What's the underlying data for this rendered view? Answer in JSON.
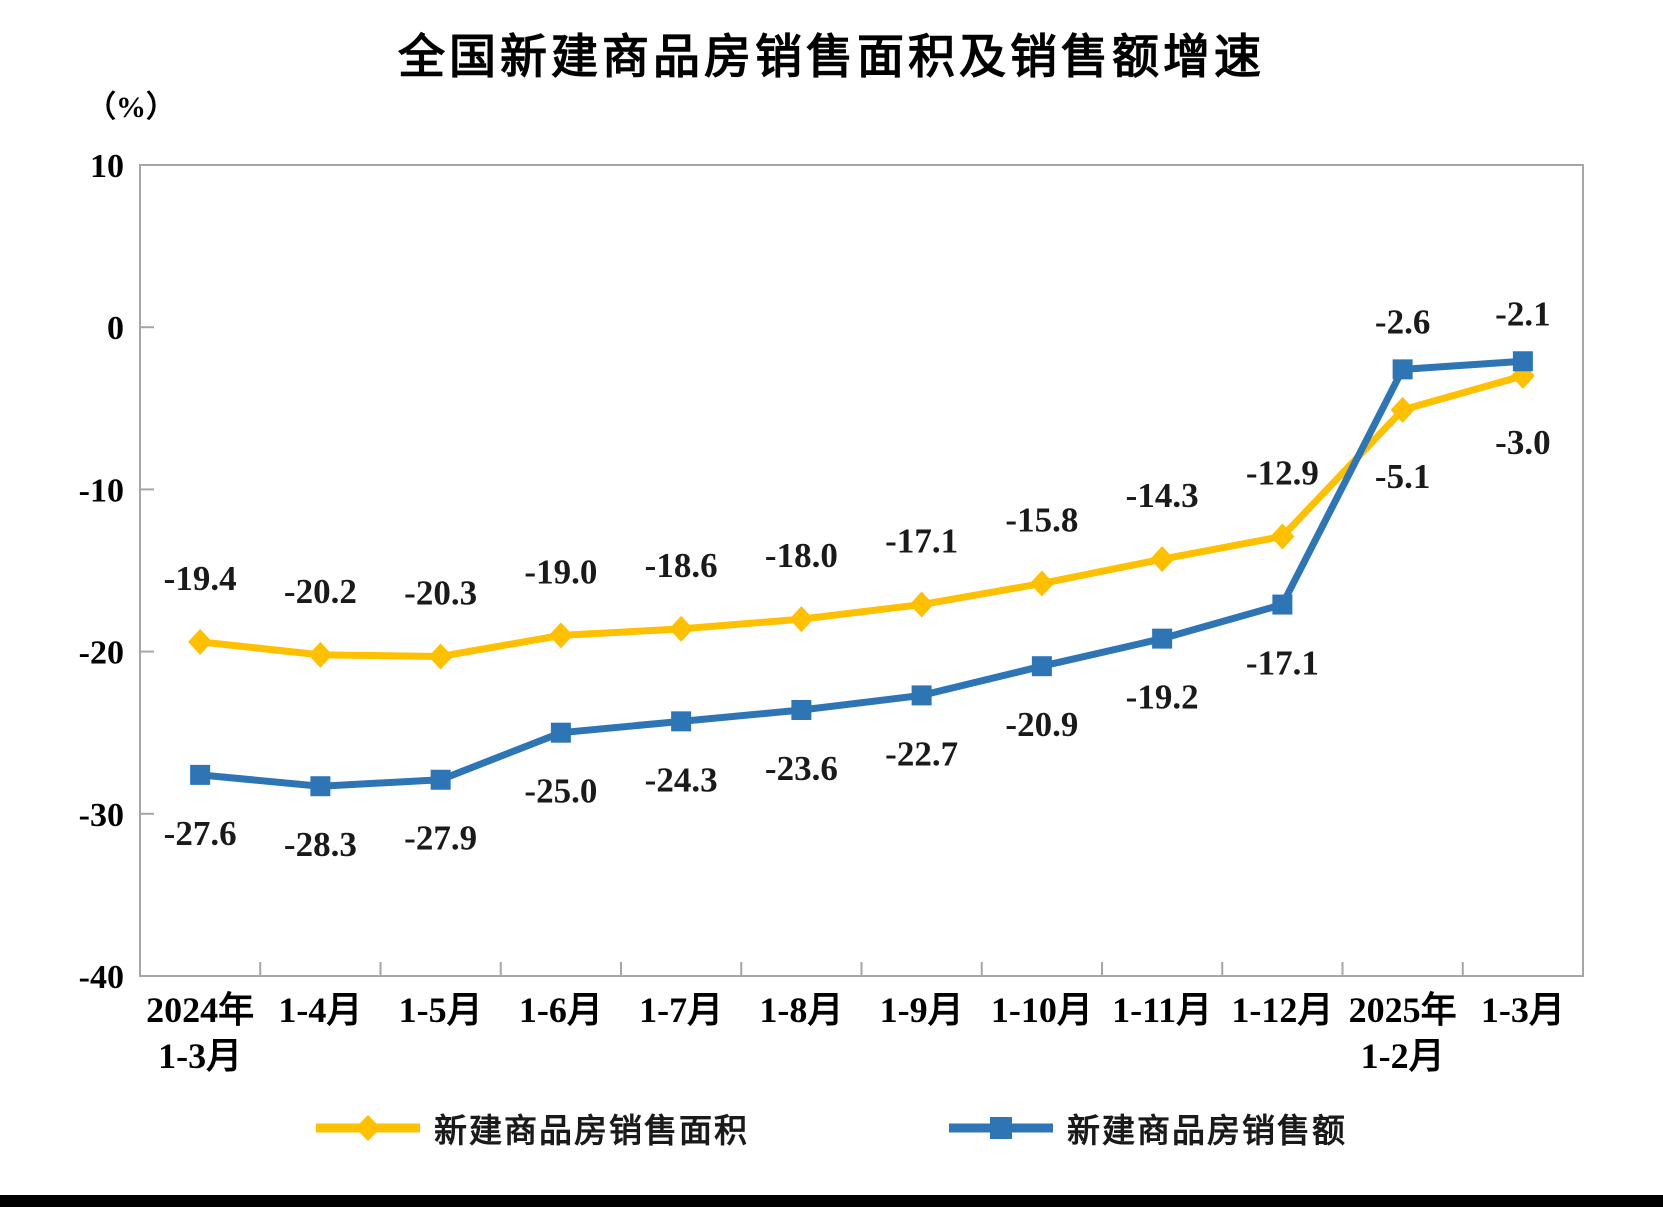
{
  "chart": {
    "title": "全国新建商品房销售面积及销售额增速",
    "y_unit_label": "（%）"
  },
  "chart_data": {
    "type": "line",
    "title": "全国新建商品房销售面积及销售额增速",
    "ylabel": "（%）",
    "xlabel": "",
    "ylim": [
      -40,
      10
    ],
    "yticks": [
      10,
      0,
      -10,
      -20,
      -30,
      -40
    ],
    "grid": false,
    "legend_position": "bottom",
    "axis_color": "#A6A6A6",
    "label_color": "#1A1A1A",
    "categories": [
      "2024年\n1-3月",
      "1-4月",
      "1-5月",
      "1-6月",
      "1-7月",
      "1-8月",
      "1-9月",
      "1-10月",
      "1-11月",
      "1-12月",
      "2025年\n1-2月",
      "1-3月"
    ],
    "series": [
      {
        "name": "新建商品房销售面积",
        "color": "#FFC000",
        "marker": "diamond",
        "values": [
          -19.4,
          -20.2,
          -20.3,
          -19.0,
          -18.6,
          -18.0,
          -17.1,
          -15.8,
          -14.3,
          -12.9,
          -5.1,
          -3.0
        ],
        "label_side": [
          "above",
          "above",
          "above",
          "above",
          "above",
          "above",
          "above",
          "above",
          "above",
          "above",
          "below",
          "below"
        ]
      },
      {
        "name": "新建商品房销售额",
        "color": "#2E75B6",
        "marker": "square",
        "values": [
          -27.6,
          -28.3,
          -27.9,
          -25.0,
          -24.3,
          -23.6,
          -22.7,
          -20.9,
          -19.2,
          -17.1,
          -2.6,
          -2.1
        ],
        "label_side": [
          "below",
          "below",
          "below",
          "below",
          "below",
          "below",
          "below",
          "below",
          "below",
          "below",
          "above",
          "above"
        ]
      }
    ]
  }
}
